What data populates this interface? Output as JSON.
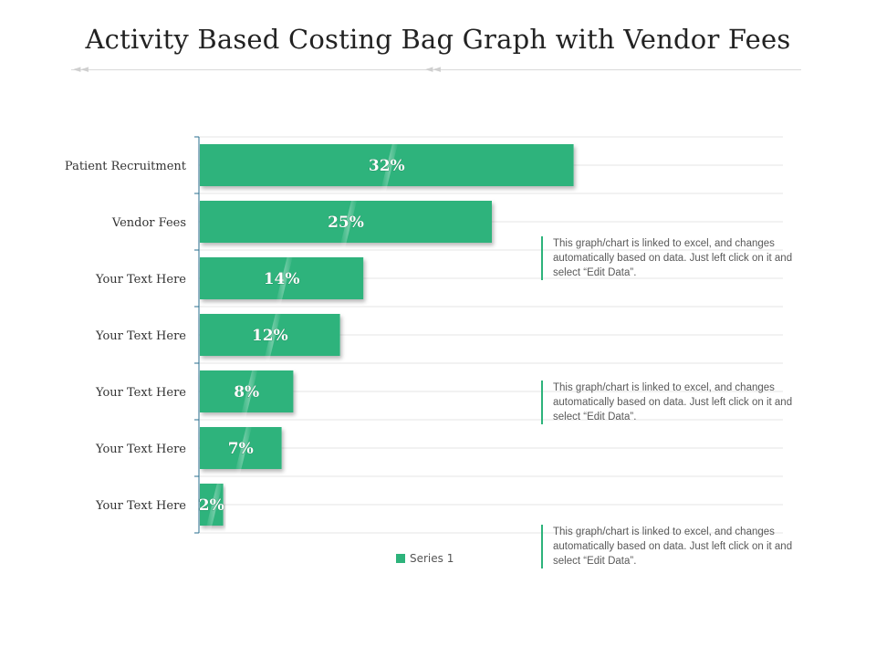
{
  "title": "Activity Based Costing Bag Graph with Vendor Fees",
  "chart_data": {
    "type": "bar",
    "orientation": "horizontal",
    "categories": [
      "Patient Recruitment",
      "Vendor Fees",
      "Your Text Here",
      "Your Text Here",
      "Your Text Here",
      "Your Text Here",
      "Your Text Here"
    ],
    "series": [
      {
        "name": "Series 1",
        "values": [
          32,
          25,
          14,
          12,
          8,
          7,
          2
        ]
      }
    ],
    "data_labels": [
      "32%",
      "25%",
      "14%",
      "12%",
      "8%",
      "7%",
      "2%"
    ],
    "xlim": [
      0,
      50
    ],
    "grid": true,
    "legend": "bottom",
    "bar_color": "#2db37b"
  },
  "legend": {
    "label": "Series 1"
  },
  "notes": [
    "This graph/chart is linked to excel, and changes automatically based on data. Just left click on it and select “Edit Data”.",
    "This graph/chart is linked to excel, and changes automatically based on data. Just left click on it and select “Edit Data”.",
    "This graph/chart is linked to excel, and changes automatically based on data. Just left click on it and select “Edit Data”."
  ],
  "decor": {
    "arrow_glyph": "◄◄"
  }
}
